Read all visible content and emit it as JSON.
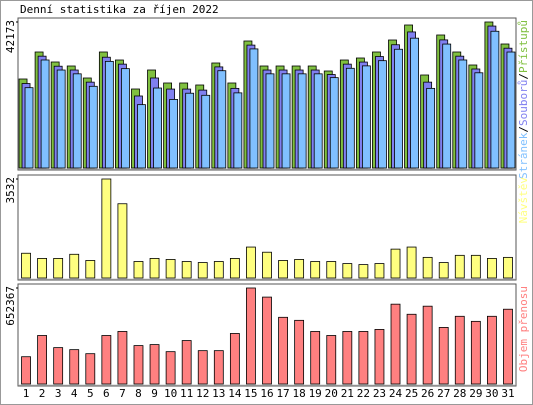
{
  "title": "Denní statistika za říjen 2022",
  "legend_separator": "/",
  "chart_data": [
    {
      "type": "bar",
      "ylim": [
        0,
        42173
      ],
      "yticks": [
        42173
      ],
      "series": [
        {
          "name": "Přístupů",
          "color": "#80c040",
          "values": [
            25708,
            33507,
            30619,
            29463,
            25997,
            33507,
            31196,
            22820,
            28308,
            24553,
            24553,
            23975,
            30330,
            24553,
            36685,
            29463,
            29463,
            29463,
            29463,
            28019,
            31196,
            31774,
            33507,
            36974,
            41306,
            26864,
            38418,
            33507,
            29752,
            42173,
            35818
          ]
        },
        {
          "name": "Souborů",
          "color": "#8080f0",
          "values": [
            24400,
            32300,
            29400,
            28300,
            24800,
            32000,
            30000,
            20800,
            26000,
            22800,
            22800,
            22500,
            29200,
            23000,
            35500,
            28300,
            28300,
            28300,
            28300,
            27000,
            30000,
            30600,
            32200,
            35600,
            39300,
            24800,
            37000,
            32300,
            28600,
            41000,
            34600
          ]
        },
        {
          "name": "Stránek",
          "color": "#80c0ff",
          "values": [
            23200,
            31200,
            28300,
            27200,
            23600,
            30800,
            28700,
            18300,
            23100,
            19800,
            21600,
            21000,
            28100,
            21700,
            34400,
            27200,
            27200,
            27200,
            27200,
            26100,
            28800,
            29500,
            31000,
            34300,
            37500,
            23000,
            35800,
            31200,
            27500,
            39500,
            33500
          ]
        }
      ]
    },
    {
      "type": "bar",
      "ylim": [
        0,
        3532
      ],
      "yticks": [
        3532
      ],
      "series": [
        {
          "name": "Návštěv",
          "color": "#ffff80",
          "values": [
            883,
            699,
            699,
            846,
            625,
            3532,
            2649,
            589,
            699,
            662,
            589,
            552,
            589,
            699,
            1104,
            920,
            625,
            662,
            589,
            589,
            515,
            478,
            515,
            1030,
            1104,
            736,
            552,
            809,
            809,
            699,
            736
          ]
        }
      ]
    },
    {
      "type": "bar",
      "ylim": [
        0,
        652367
      ],
      "yticks": [
        652367
      ],
      "categories": [
        "1",
        "2",
        "3",
        "4",
        "5",
        "6",
        "7",
        "8",
        "9",
        "10",
        "11",
        "12",
        "13",
        "14",
        "15",
        "16",
        "17",
        "18",
        "19",
        "20",
        "21",
        "22",
        "23",
        "24",
        "25",
        "26",
        "27",
        "28",
        "29",
        "30",
        "31"
      ],
      "category_colors": [
        "#80c040",
        "#80c040",
        "#000",
        "#000",
        "#000",
        "#000",
        "#000",
        "#80c040",
        "#80c040",
        "#000",
        "#000",
        "#000",
        "#000",
        "#000",
        "#80c040",
        "#80c040",
        "#000",
        "#000",
        "#000",
        "#000",
        "#000",
        "#80c040",
        "#80c040",
        "#000",
        "#000",
        "#000",
        "#000",
        "#000",
        "#80c040",
        "#80c040",
        "#000"
      ],
      "series": [
        {
          "name": "Objem přenosu",
          "color": "#ff8080",
          "values": [
            185409,
            329616,
            247212,
            233478,
            206010,
            329616,
            357084,
            260946,
            267813,
            219744,
            295281,
            226611,
            226611,
            343350,
            652367,
            590562,
            453222,
            432621,
            357084,
            329616,
            357084,
            357084,
            370818,
            542493,
            473823,
            528759,
            384552,
            460089,
            425754,
            460089,
            508158
          ]
        }
      ]
    }
  ]
}
